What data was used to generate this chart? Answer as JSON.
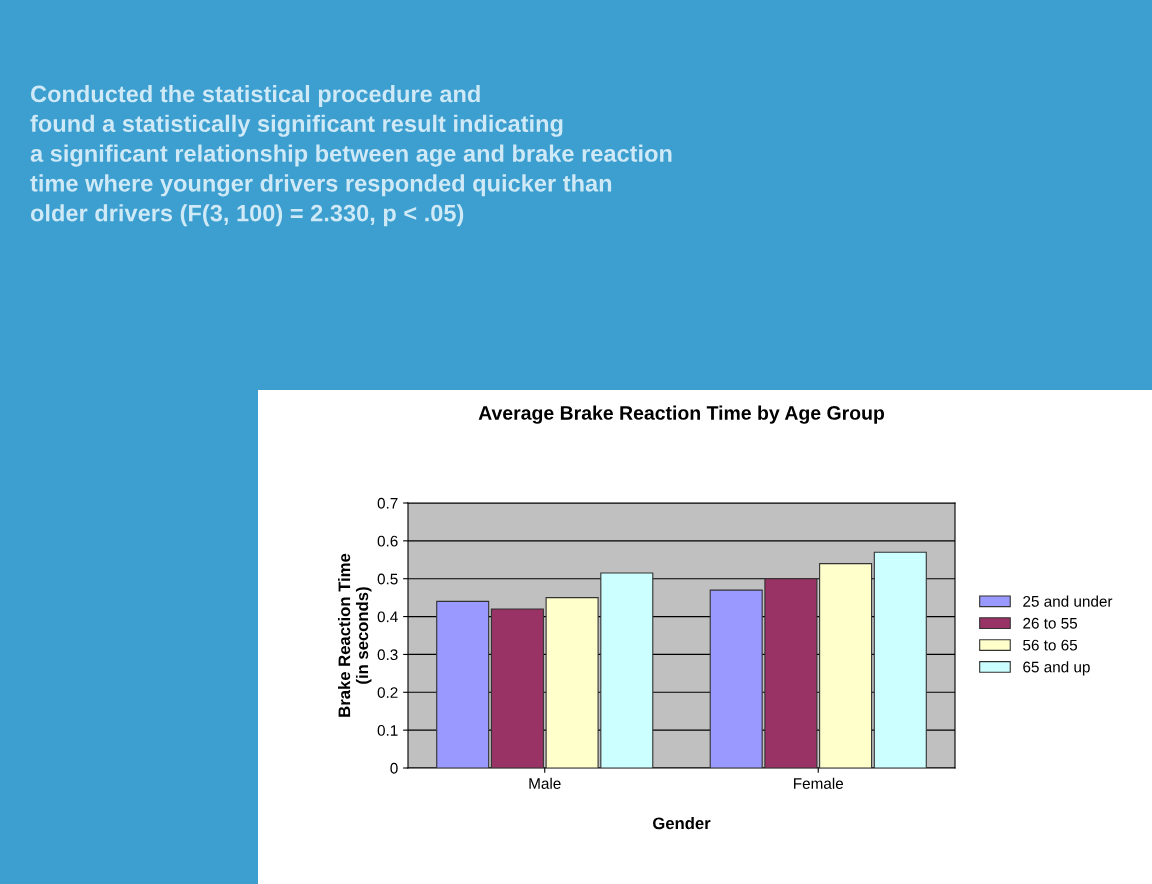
{
  "chart_data": {
    "type": "bar",
    "title": "Average Brake Reaction Time by Age Group",
    "xlabel": "Gender",
    "ylabel": "Brake Reaction Time\n(in seconds)",
    "annotations": [
      "Conducted the statistical procedure and\nfound a statistically significant result indicating\na significant relationship between age and brake reaction\ntime where younger drivers responded quicker than\nolder drivers (F(3, 100) = 2.330, p < .05)"
    ],
    "categories": [
      "Male",
      "Female"
    ],
    "series": [
      {
        "name": "25 and under",
        "color": "#9999ff",
        "values": [
          0.44,
          0.47
        ]
      },
      {
        "name": "26 to 55",
        "color": "#993366",
        "values": [
          0.42,
          0.5
        ]
      },
      {
        "name": "56 to 65",
        "color": "#ffffcc",
        "values": [
          0.45,
          0.54
        ]
      },
      {
        "name": "65 and up",
        "color": "#ccffff",
        "values": [
          0.515,
          0.57
        ]
      }
    ],
    "ylim": [
      0,
      0.7
    ],
    "yticks": [
      0,
      0.1,
      0.2,
      0.3,
      0.4,
      0.5,
      0.6,
      0.7
    ],
    "grid": "y",
    "legend": "right"
  }
}
